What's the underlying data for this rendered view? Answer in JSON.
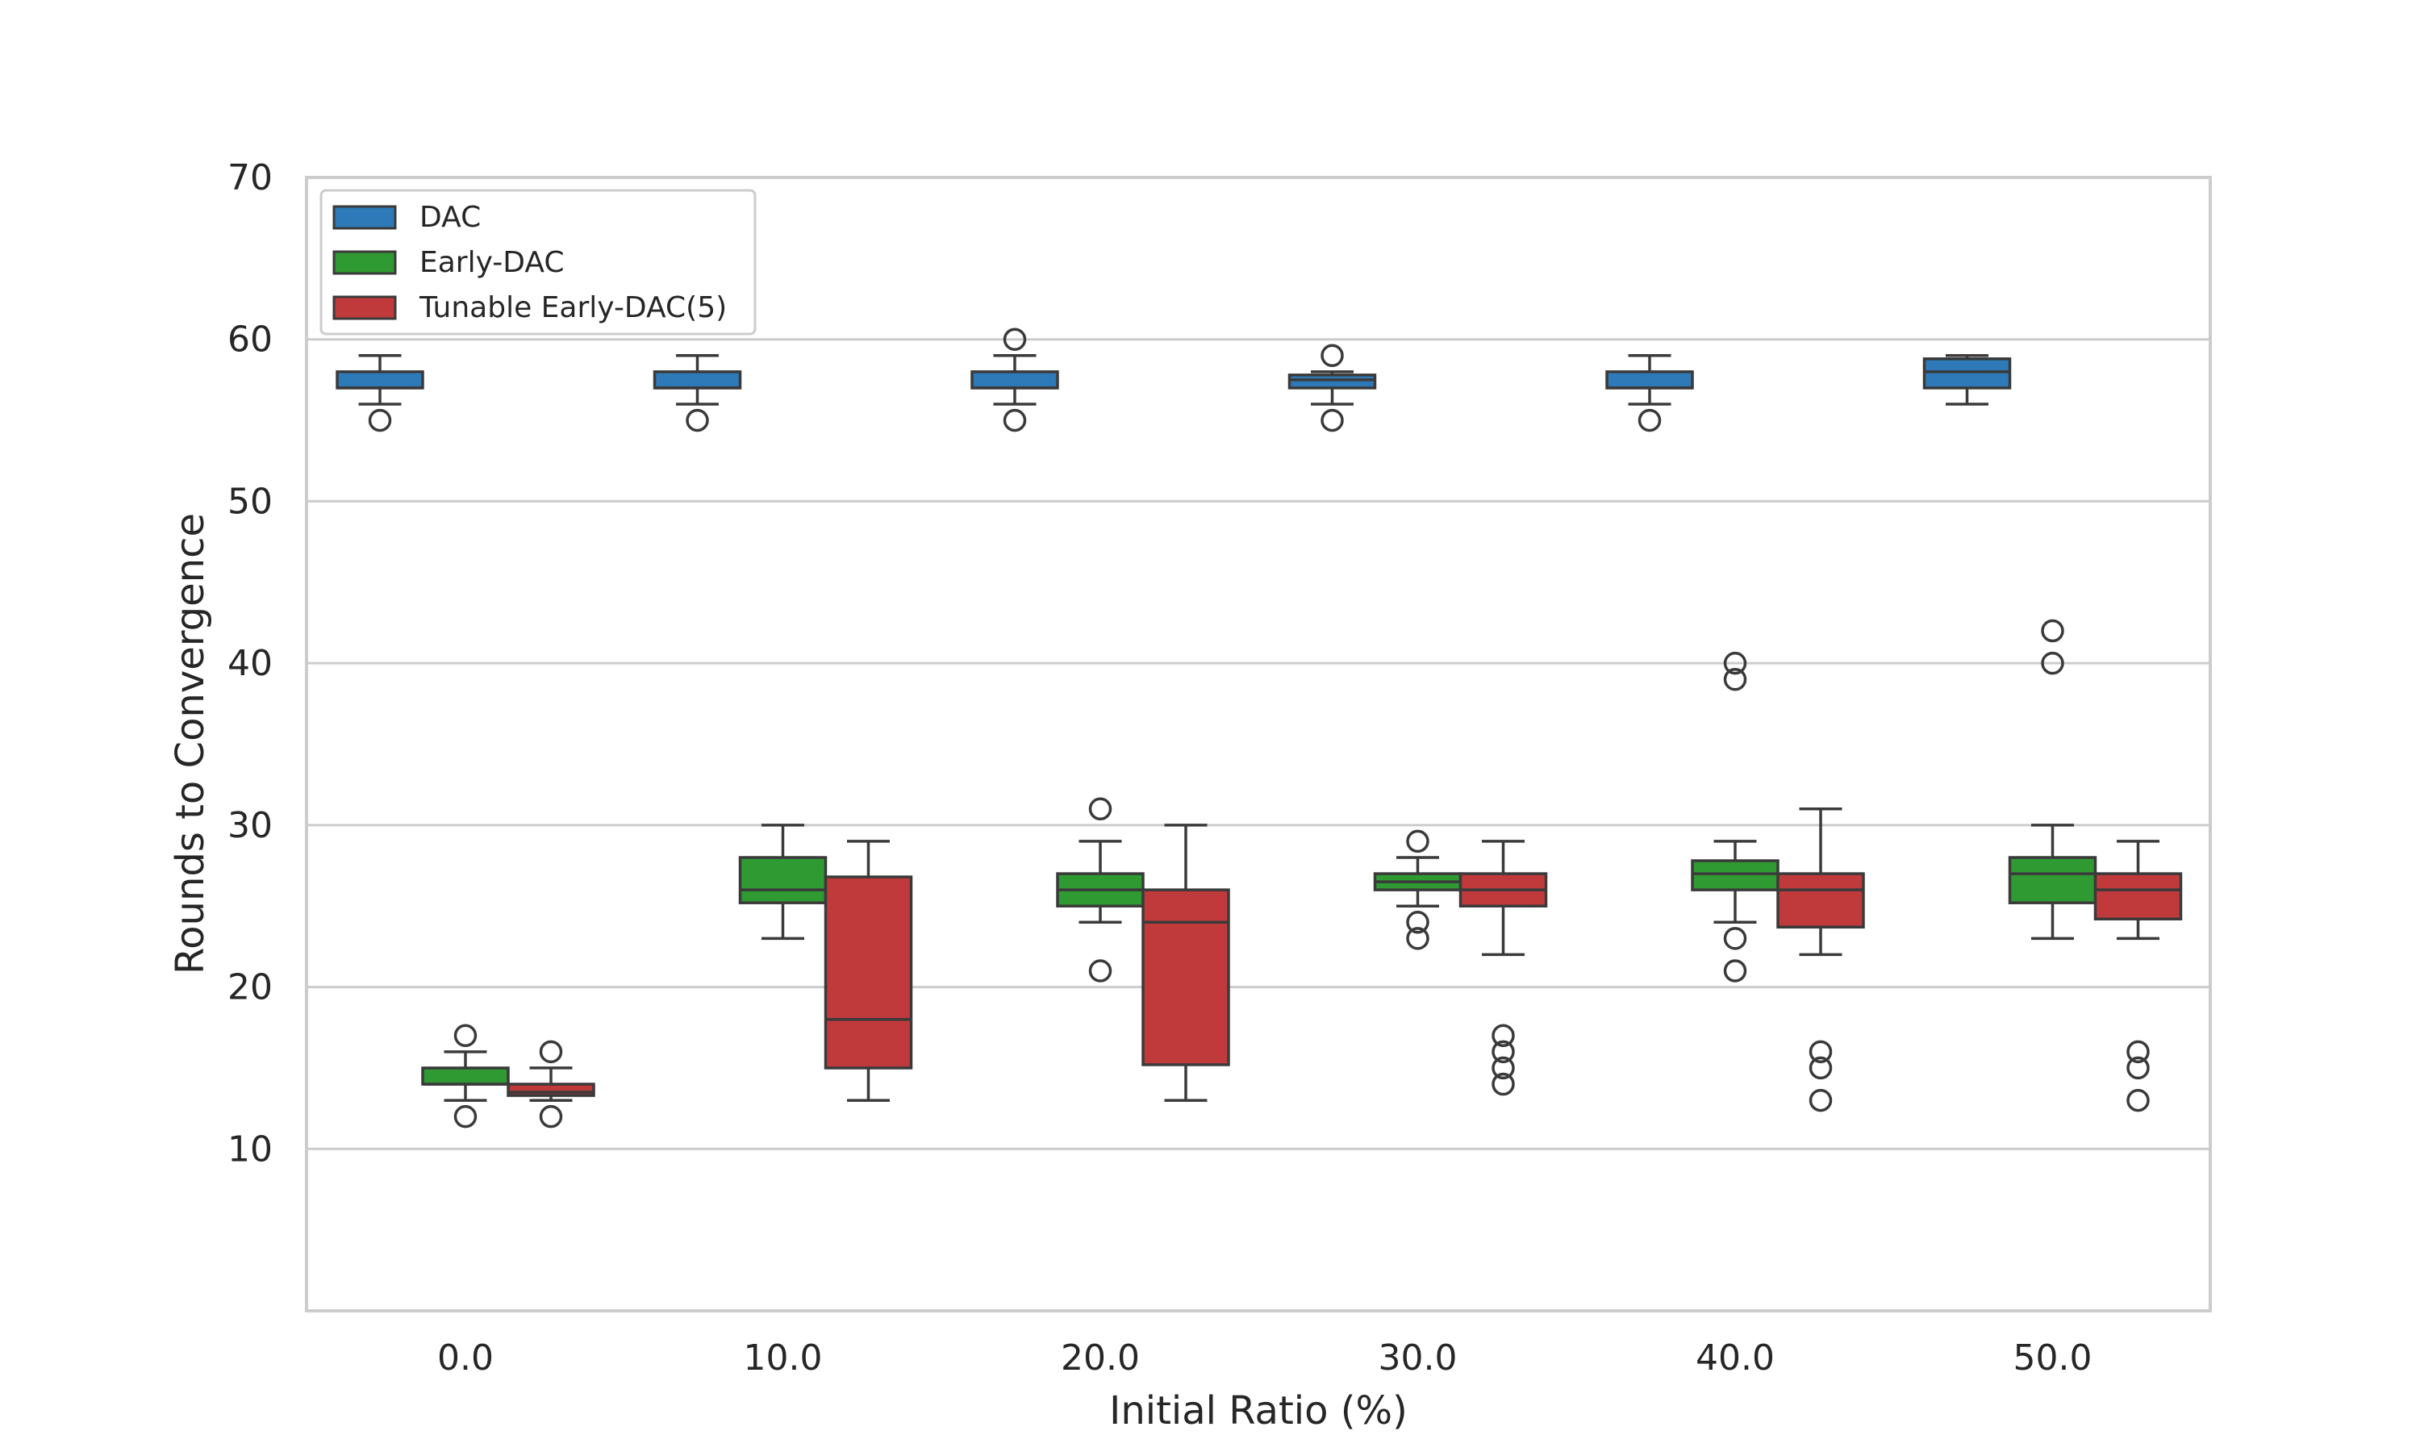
{
  "chart_data": {
    "type": "box",
    "xlabel": "Initial Ratio (%)",
    "ylabel": "Rounds to Convergence",
    "categories": [
      "0.0",
      "10.0",
      "20.0",
      "30.0",
      "40.0",
      "50.0"
    ],
    "yticks": [
      10,
      20,
      30,
      40,
      50,
      60,
      70
    ],
    "ylim": [
      0,
      70
    ],
    "grid": true,
    "legend_position": "top-left",
    "series": [
      {
        "name": "DAC",
        "color": "#2e7ab8",
        "boxes": [
          {
            "whislo": 56,
            "q1": 57,
            "med": 57,
            "q3": 58,
            "whishi": 59,
            "fliers": [
              55
            ]
          },
          {
            "whislo": 56,
            "q1": 57,
            "med": 57,
            "q3": 58,
            "whishi": 59,
            "fliers": [
              55
            ]
          },
          {
            "whislo": 56,
            "q1": 57,
            "med": 57,
            "q3": 58,
            "whishi": 59,
            "fliers": [
              55,
              60
            ]
          },
          {
            "whislo": 56,
            "q1": 57,
            "med": 57.5,
            "q3": 57.8,
            "whishi": 58,
            "fliers": [
              55,
              59
            ]
          },
          {
            "whislo": 56,
            "q1": 57,
            "med": 57,
            "q3": 58,
            "whishi": 59,
            "fliers": [
              55
            ]
          },
          {
            "whislo": 56,
            "q1": 57,
            "med": 58,
            "q3": 58.8,
            "whishi": 59,
            "fliers": []
          }
        ]
      },
      {
        "name": "Early-DAC",
        "color": "#2f9a32",
        "boxes": [
          {
            "whislo": 13,
            "q1": 14,
            "med": 14,
            "q3": 15,
            "whishi": 16,
            "fliers": [
              12,
              17
            ]
          },
          {
            "whislo": 23,
            "q1": 25.2,
            "med": 26,
            "q3": 28,
            "whishi": 30,
            "fliers": []
          },
          {
            "whislo": 24,
            "q1": 25,
            "med": 26,
            "q3": 27,
            "whishi": 29,
            "fliers": [
              21,
              31
            ]
          },
          {
            "whislo": 25,
            "q1": 26,
            "med": 26.5,
            "q3": 27,
            "whishi": 28,
            "fliers": [
              23,
              24,
              29
            ]
          },
          {
            "whislo": 24,
            "q1": 26,
            "med": 27,
            "q3": 27.8,
            "whishi": 29,
            "fliers": [
              21,
              23,
              39,
              40
            ]
          },
          {
            "whislo": 23,
            "q1": 25.2,
            "med": 27,
            "q3": 28,
            "whishi": 30,
            "fliers": [
              40,
              42
            ]
          }
        ]
      },
      {
        "name": "Tunable Early-DAC(5)",
        "color": "#c03a3b",
        "boxes": [
          {
            "whislo": 13,
            "q1": 13.3,
            "med": 13.5,
            "q3": 14,
            "whishi": 15,
            "fliers": [
              12,
              16
            ]
          },
          {
            "whislo": 13,
            "q1": 15,
            "med": 18,
            "q3": 26.8,
            "whishi": 29,
            "fliers": []
          },
          {
            "whislo": 13,
            "q1": 15.2,
            "med": 24,
            "q3": 26,
            "whishi": 30,
            "fliers": []
          },
          {
            "whislo": 22,
            "q1": 25,
            "med": 26,
            "q3": 27,
            "whishi": 29,
            "fliers": [
              14,
              15,
              16,
              17
            ]
          },
          {
            "whislo": 22,
            "q1": 23.7,
            "med": 26,
            "q3": 27,
            "whishi": 31,
            "fliers": [
              13,
              15,
              16
            ]
          },
          {
            "whislo": 23,
            "q1": 24.2,
            "med": 26,
            "q3": 27,
            "whishi": 29,
            "fliers": [
              13,
              15,
              16
            ]
          }
        ]
      }
    ]
  }
}
